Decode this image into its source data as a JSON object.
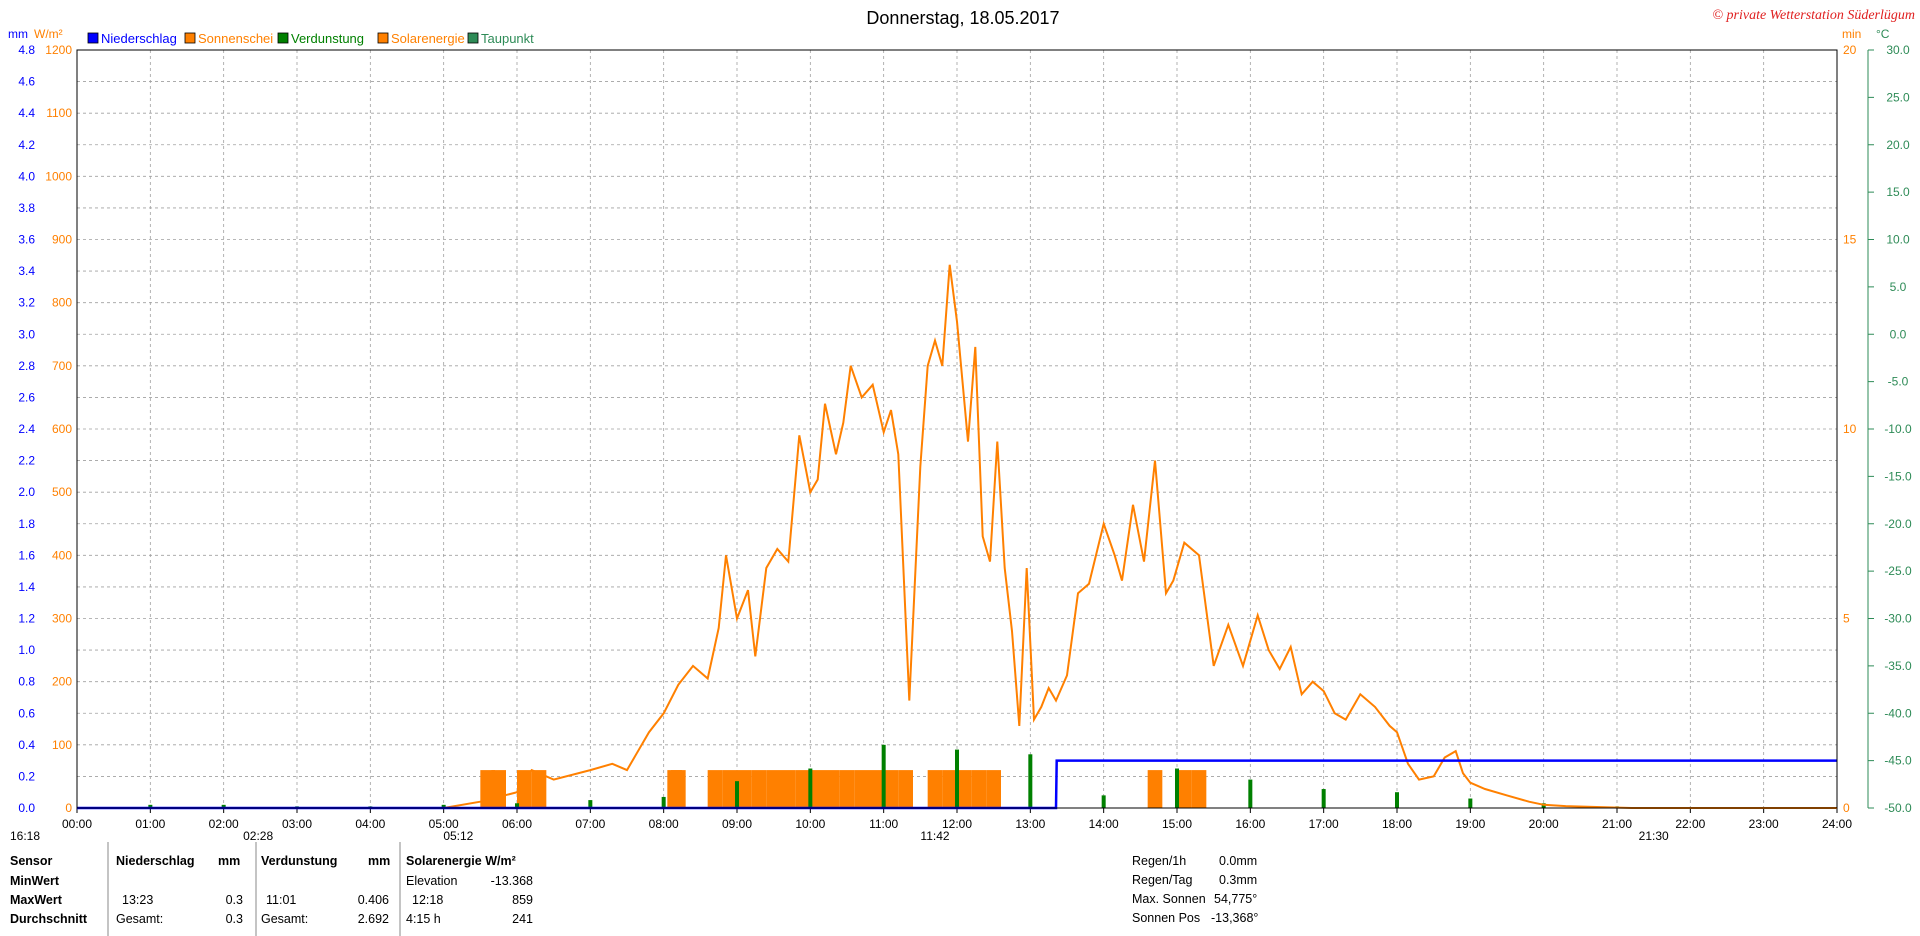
{
  "title": "Donnerstag, 18.05.2017",
  "copyright": "© private Wetterstation Süderlügum",
  "colors": {
    "niederschlag": "#0000ff",
    "sonnenschein": "#ff8000",
    "verdunstung": "#008000",
    "solar": "#ff8000",
    "taupunkt": "#2e8b57",
    "grid": "#a0a0a0"
  },
  "legend": [
    {
      "label": "Niederschlag",
      "color": "#0000ff"
    },
    {
      "label": "Sonnenschei",
      "color": "#ff8000"
    },
    {
      "label": "Verdunstung",
      "color": "#008000"
    },
    {
      "label": "Solarenergie",
      "color": "#ff8000"
    },
    {
      "label": "Taupunkt",
      "color": "#2e8b57"
    }
  ],
  "axes": {
    "mm_unit": "mm",
    "wm2_unit": "W/m²",
    "min_unit": "min",
    "c_unit": "°C",
    "mm_ticks": [
      "0.0",
      "0.2",
      "0.4",
      "0.6",
      "0.8",
      "1.0",
      "1.2",
      "1.4",
      "1.6",
      "1.8",
      "2.0",
      "2.2",
      "2.4",
      "2.6",
      "2.8",
      "3.0",
      "3.2",
      "3.4",
      "3.6",
      "3.8",
      "4.0",
      "4.2",
      "4.4",
      "4.6",
      "4.8"
    ],
    "wm2_ticks": [
      "0",
      "100",
      "200",
      "300",
      "400",
      "500",
      "600",
      "700",
      "800",
      "900",
      "1000",
      "1100",
      "1200"
    ],
    "min_ticks": [
      "0",
      "5",
      "10",
      "15",
      "20"
    ],
    "c_ticks": [
      "-50.0",
      "-45.0",
      "-40.0",
      "-35.0",
      "-30.0",
      "-25.0",
      "-20.0",
      "-15.0",
      "-10.0",
      "-5.0",
      "0.0",
      "5.0",
      "10.0",
      "15.0",
      "20.0",
      "25.0",
      "30.0"
    ],
    "x_ticks": [
      "00:00",
      "01:00",
      "02:00",
      "03:00",
      "04:00",
      "05:00",
      "06:00",
      "07:00",
      "08:00",
      "09:00",
      "10:00",
      "11:00",
      "12:00",
      "13:00",
      "14:00",
      "15:00",
      "16:00",
      "17:00",
      "18:00",
      "19:00",
      "20:00",
      "21:00",
      "22:00",
      "23:00",
      "24:00"
    ]
  },
  "markers": [
    {
      "label": "16:18",
      "hour": -0.4
    },
    {
      "label": "02:28",
      "hour": 2.47
    },
    {
      "label": "05:12",
      "hour": 5.2
    },
    {
      "label": "11:42",
      "hour": 11.7
    },
    {
      "label": "21:30",
      "hour": 21.5
    }
  ],
  "chart_data": {
    "type": "line",
    "title": "Donnerstag, 18.05.2017",
    "xlim": [
      "00:00",
      "24:00"
    ],
    "ylim_wm2": [
      0,
      1200
    ],
    "ylim_mm": [
      0,
      4.8
    ],
    "ylim_min": [
      0,
      20
    ],
    "ylim_c": [
      -50,
      30
    ],
    "grid": true,
    "legend_position": "top-left",
    "series": [
      {
        "name": "Solarenergie",
        "axis": "W/m²",
        "x": [
          5.0,
          5.5,
          6.0,
          6.2,
          6.5,
          7.0,
          7.3,
          7.5,
          7.8,
          8.0,
          8.2,
          8.4,
          8.6,
          8.75,
          8.85,
          9.0,
          9.15,
          9.25,
          9.4,
          9.55,
          9.7,
          9.85,
          10.0,
          10.1,
          10.2,
          10.35,
          10.45,
          10.55,
          10.7,
          10.85,
          11.0,
          11.1,
          11.2,
          11.35,
          11.5,
          11.6,
          11.7,
          11.8,
          11.9,
          12.0,
          12.15,
          12.25,
          12.35,
          12.45,
          12.55,
          12.65,
          12.75,
          12.85,
          12.95,
          13.05,
          13.15,
          13.25,
          13.35,
          13.5,
          13.65,
          13.8,
          14.0,
          14.15,
          14.25,
          14.4,
          14.55,
          14.7,
          14.85,
          14.95,
          15.1,
          15.3,
          15.5,
          15.7,
          15.9,
          16.1,
          16.25,
          16.4,
          16.55,
          16.7,
          16.85,
          17.0,
          17.15,
          17.3,
          17.5,
          17.7,
          17.9,
          18.0,
          18.15,
          18.3,
          18.5,
          18.65,
          18.8,
          18.9,
          19.0,
          19.2,
          19.5,
          19.8,
          20.0,
          20.3,
          20.6,
          20.9,
          21.2,
          21.5
        ],
        "values": [
          0,
          10,
          25,
          60,
          45,
          60,
          70,
          60,
          120,
          150,
          195,
          225,
          205,
          285,
          400,
          300,
          345,
          240,
          380,
          410,
          390,
          590,
          500,
          520,
          640,
          560,
          610,
          700,
          650,
          670,
          595,
          630,
          560,
          170,
          540,
          700,
          740,
          700,
          860,
          770,
          580,
          730,
          430,
          390,
          580,
          380,
          280,
          130,
          380,
          140,
          160,
          190,
          170,
          210,
          340,
          355,
          450,
          400,
          360,
          480,
          390,
          550,
          340,
          360,
          420,
          400,
          225,
          290,
          225,
          305,
          250,
          220,
          255,
          180,
          200,
          185,
          150,
          140,
          180,
          160,
          130,
          120,
          70,
          45,
          50,
          80,
          90,
          55,
          40,
          30,
          20,
          10,
          5,
          3,
          2,
          1,
          0,
          0
        ]
      },
      {
        "name": "Niederschlag",
        "axis": "mm",
        "x": [
          0,
          13.35,
          13.36,
          24
        ],
        "values": [
          0,
          0,
          0.3,
          0.3
        ]
      },
      {
        "name": "Sonnenschein",
        "axis": "min",
        "type": "bar",
        "x": [
          5.5,
          5.65,
          6.0,
          6.2,
          8.05,
          8.1,
          8.25,
          8.4,
          8.6,
          8.8,
          9.0,
          9.2,
          9.4,
          9.6,
          9.8,
          10.0,
          10.2,
          10.4,
          10.6,
          10.8,
          11.0,
          11.2,
          11.4,
          11.6,
          11.8,
          12.0,
          12.2,
          12.4,
          14.6,
          15.0,
          15.2
        ],
        "values": [
          1,
          1,
          1,
          1,
          1,
          1,
          0,
          0,
          1,
          1,
          1,
          1,
          1,
          1,
          1,
          1,
          1,
          1,
          1,
          1,
          1,
          1,
          0,
          1,
          1,
          1,
          1,
          1,
          1,
          1,
          1
        ]
      },
      {
        "name": "Verdunstung",
        "axis": "mm",
        "type": "bar",
        "x": [
          1.0,
          2.0,
          3.0,
          4.0,
          5.0,
          6.0,
          7.0,
          8.0,
          9.0,
          10.0,
          11.0,
          12.0,
          13.0,
          14.0,
          15.0,
          16.0,
          17.0,
          18.0,
          19.0,
          20.0,
          21.0
        ],
        "values": [
          0.02,
          0.02,
          0.01,
          0.01,
          0.02,
          0.03,
          0.05,
          0.07,
          0.17,
          0.25,
          0.4,
          0.37,
          0.34,
          0.08,
          0.25,
          0.18,
          0.12,
          0.1,
          0.06,
          0.03,
          0.01
        ]
      }
    ]
  },
  "table": {
    "headers": [
      "Sensor",
      "Niederschlag",
      "mm",
      "Verdunstung",
      "mm",
      "Solarenergie W/m²"
    ],
    "rows": [
      {
        "label": "MinWert",
        "c1": "",
        "c2": "",
        "c3": "",
        "c4": "",
        "c5": "Elevation",
        "c6": "-13.368"
      },
      {
        "label": "MaxWert",
        "c1": "13:23",
        "c2": "0.3",
        "c3": "11:01",
        "c4": "0.406",
        "c5": "12:18",
        "c6": "859"
      },
      {
        "label": "Durchschnitt",
        "c1": "Gesamt:",
        "c2": "0.3",
        "c3": "Gesamt:",
        "c4": "2.692",
        "c5": "4:15 h",
        "c6": "241"
      }
    ],
    "right_info": [
      {
        "label": "Regen/1h",
        "value": "0.0mm"
      },
      {
        "label": "Regen/Tag",
        "value": "0.3mm"
      },
      {
        "label": "Max. Sonnen",
        "value": "54,775°"
      },
      {
        "label": "Sonnen Pos",
        "value": "-13,368°"
      }
    ]
  }
}
